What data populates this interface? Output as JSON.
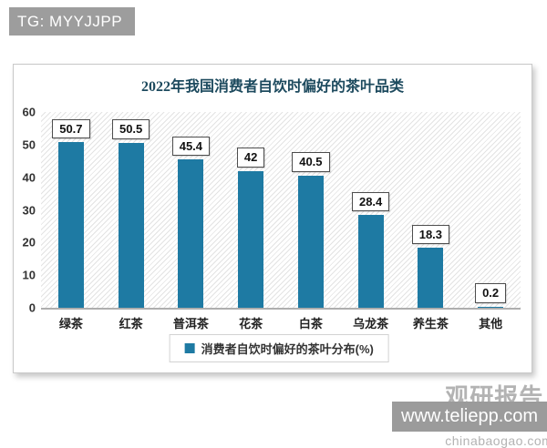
{
  "header": {
    "badge": "TG: MYYJJPP"
  },
  "footer": {
    "badge": "www.teliepp.com"
  },
  "watermark": {
    "name": "观研报告网",
    "url": "chinabaogao.com"
  },
  "chart_data": {
    "type": "bar",
    "title": "2022年我国消费者自饮时偏好的茶叶品类",
    "categories": [
      "绿茶",
      "红茶",
      "普洱茶",
      "花茶",
      "白茶",
      "乌龙茶",
      "养生茶",
      "其他"
    ],
    "values": [
      50.7,
      50.5,
      45.4,
      42,
      40.5,
      28.4,
      18.3,
      0.2
    ],
    "xlabel": "",
    "ylabel": "",
    "ylim": [
      0,
      60
    ],
    "yticks": [
      0,
      10,
      20,
      30,
      40,
      50,
      60
    ],
    "legend": [
      "消费者自饮时偏好的茶叶分布(%)"
    ],
    "legend_position": "bottom",
    "grid": false,
    "bar_color": "#1e7aa3",
    "title_color": "#1d4a5e",
    "hatch_background": true
  }
}
